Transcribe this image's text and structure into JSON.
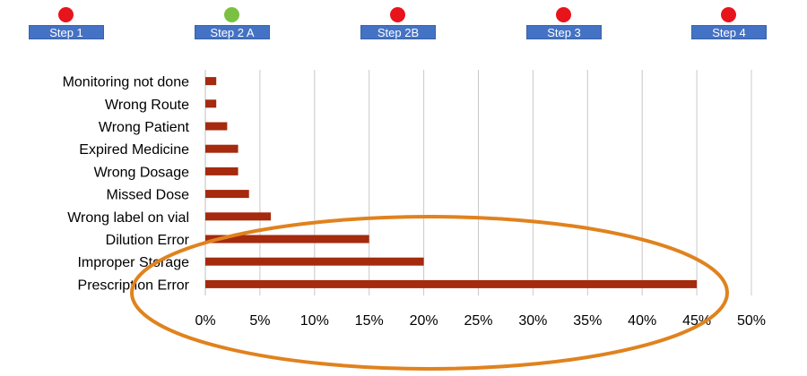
{
  "steps": [
    {
      "label": "Step 1",
      "status_color": "#e8141b"
    },
    {
      "label": "Step 2 A",
      "status_color": "#7ac142"
    },
    {
      "label": "Step 2B",
      "status_color": "#e8141b"
    },
    {
      "label": "Step 3",
      "status_color": "#e8141b"
    },
    {
      "label": "Step 4",
      "status_color": "#e8141b"
    }
  ],
  "colors": {
    "bar": "#a52a0e",
    "highlight_ellipse": "#e0821e",
    "step_box": "#4472c4",
    "gridline": "#c8c8c8"
  },
  "chart_data": {
    "type": "bar",
    "orientation": "horizontal",
    "categories": [
      "Monitoring not done",
      "Wrong Route",
      "Wrong Patient",
      "Expired Medicine",
      "Wrong Dosage",
      "Missed Dose",
      "Wrong label on vial",
      "Dilution Error",
      "Improper Storage",
      "Prescription Error"
    ],
    "values": [
      1,
      1,
      2,
      3,
      3,
      4,
      6,
      15,
      20,
      45
    ],
    "value_unit": "%",
    "xlim": [
      0,
      50
    ],
    "xticks": [
      "0%",
      "5%",
      "10%",
      "15%",
      "20%",
      "25%",
      "30%",
      "35%",
      "40%",
      "45%",
      "50%"
    ],
    "title": "",
    "xlabel": "",
    "ylabel": "",
    "grid": "vertical",
    "legend": "none"
  }
}
